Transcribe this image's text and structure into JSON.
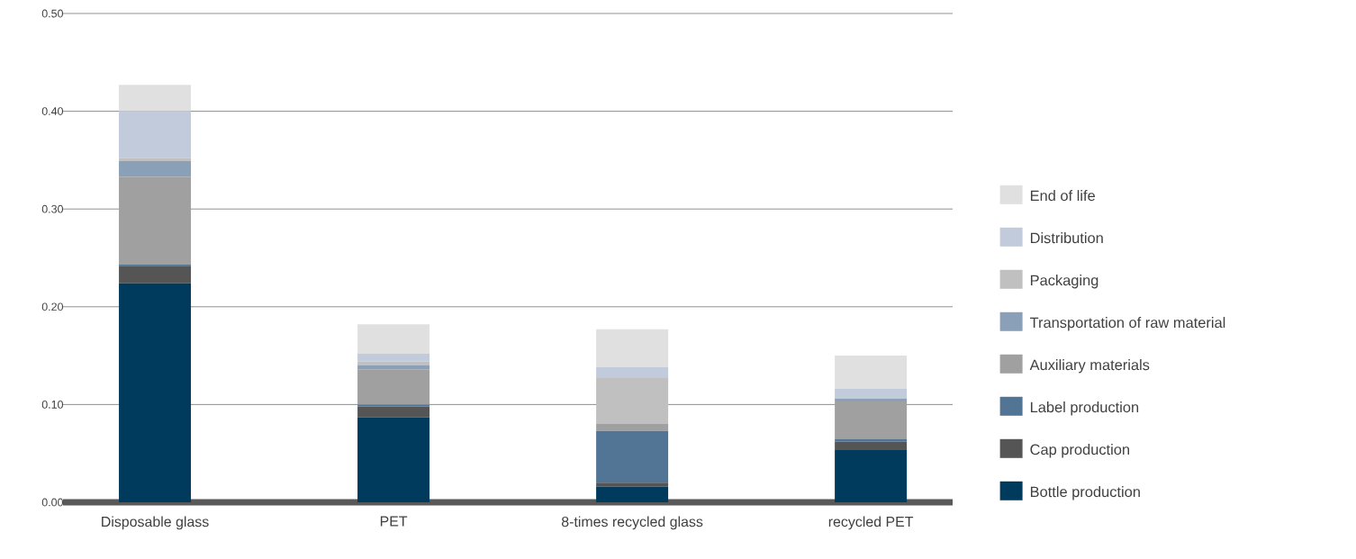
{
  "chart_data": {
    "type": "bar",
    "stacked": true,
    "categories": [
      "Disposable glass",
      "PET",
      "8-times recycled glass",
      "recycled PET"
    ],
    "series": [
      {
        "name": "Bottle production",
        "color": "#003a5d",
        "values": [
          0.224,
          0.087,
          0.016,
          0.054
        ]
      },
      {
        "name": "Cap production",
        "color": "#555555",
        "values": [
          0.018,
          0.011,
          0.004,
          0.008
        ]
      },
      {
        "name": "Label production",
        "color": "#527596",
        "values": [
          0.001,
          0.002,
          0.053,
          0.003
        ]
      },
      {
        "name": "Auxiliary materials",
        "color": "#a0a0a0",
        "values": [
          0.09,
          0.036,
          0.007,
          0.038
        ]
      },
      {
        "name": "Transportation of raw material",
        "color": "#8a9fb8",
        "values": [
          0.016,
          0.004,
          0.0,
          0.003
        ]
      },
      {
        "name": "Packaging",
        "color": "#c0c0c0",
        "values": [
          0.003,
          0.004,
          0.047,
          null
        ]
      },
      {
        "name": "Distribution",
        "color": "#c2cbdb",
        "values": [
          0.048,
          0.008,
          0.011,
          0.01
        ]
      },
      {
        "name": "End of life",
        "color": "#e0e0e0",
        "values": [
          0.027,
          0.03,
          0.039,
          0.034
        ]
      }
    ],
    "ylim": [
      0,
      0.5
    ],
    "yticks": [
      {
        "value": 0,
        "label": "0.00"
      },
      {
        "value": 0.1,
        "label": "0.10"
      },
      {
        "value": 0.2,
        "label": "0.20"
      },
      {
        "value": 0.3,
        "label": "0.30"
      },
      {
        "value": 0.4,
        "label": "0.40"
      },
      {
        "value": 0.5,
        "label": "0.50"
      }
    ],
    "grid": "y",
    "legend": "right"
  }
}
